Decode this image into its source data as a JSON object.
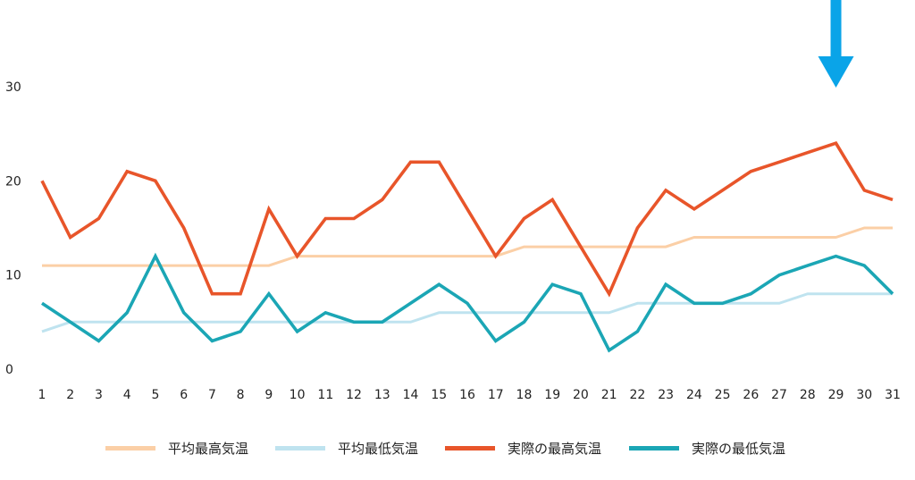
{
  "chart_data": {
    "type": "line",
    "title": "",
    "xlabel": "",
    "ylabel": "",
    "categories": [
      1,
      2,
      3,
      4,
      5,
      6,
      7,
      8,
      9,
      10,
      11,
      12,
      13,
      14,
      15,
      16,
      17,
      18,
      19,
      20,
      21,
      22,
      23,
      24,
      25,
      26,
      27,
      28,
      29,
      30,
      31
    ],
    "yticks": [
      0,
      10,
      20,
      30
    ],
    "ylim": [
      0,
      30
    ],
    "grid": false,
    "legend_position": "bottom",
    "highlight_marker": {
      "x": 29,
      "shape": "down-arrow",
      "color": "#0AA4E8"
    },
    "series": [
      {
        "name": "平均最高気温",
        "color": "#FBCFA6",
        "values": [
          11,
          11,
          11,
          11,
          11,
          11,
          11,
          11,
          11,
          12,
          12,
          12,
          12,
          12,
          12,
          12,
          12,
          13,
          13,
          13,
          13,
          13,
          13,
          14,
          14,
          14,
          14,
          14,
          14,
          15,
          15
        ]
      },
      {
        "name": "平均最低気温",
        "color": "#BFE3EF",
        "values": [
          4,
          5,
          5,
          5,
          5,
          5,
          5,
          5,
          5,
          5,
          5,
          5,
          5,
          5,
          6,
          6,
          6,
          6,
          6,
          6,
          6,
          7,
          7,
          7,
          7,
          7,
          7,
          8,
          8,
          8,
          8
        ]
      },
      {
        "name": "実際の最高気温",
        "color": "#E8552A",
        "values": [
          20,
          14,
          16,
          21,
          20,
          15,
          8,
          8,
          17,
          12,
          16,
          16,
          18,
          22,
          22,
          17,
          12,
          16,
          18,
          13,
          8,
          15,
          19,
          17,
          19,
          21,
          22,
          23,
          24,
          19,
          18
        ]
      },
      {
        "name": "実際の最低気温",
        "color": "#1BA6B5",
        "values": [
          7,
          5,
          3,
          6,
          12,
          6,
          3,
          4,
          8,
          4,
          6,
          5,
          5,
          7,
          9,
          7,
          3,
          5,
          9,
          8,
          2,
          4,
          9,
          7,
          7,
          8,
          10,
          11,
          12,
          11,
          8
        ]
      }
    ]
  }
}
